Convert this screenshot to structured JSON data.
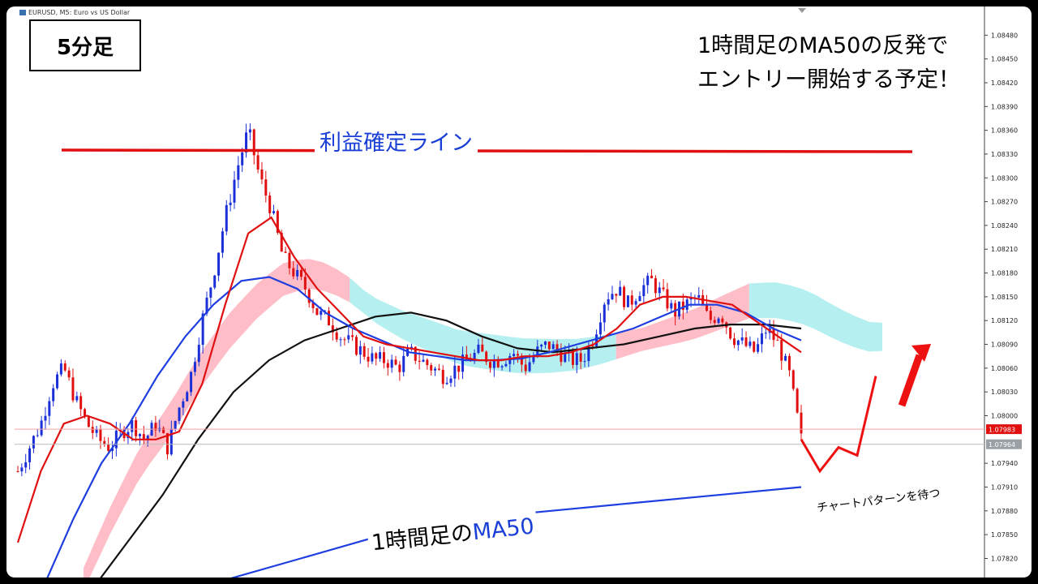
{
  "window": {
    "title": "EURUSD, M5:  Euro vs US Dollar"
  },
  "annotations": {
    "timeframe": "5分足",
    "plan_line1": "1時間足のMA50の反発で",
    "plan_line2": "エントリー開始する予定！",
    "take_profit": "利益確定ライン",
    "ma_prefix": "1時間足の",
    "ma_suffix": "MA50",
    "wait_pattern": "チャートパターンを待つ"
  },
  "colors": {
    "bull": "#1a2fd8",
    "bear": "#e01010",
    "ema_fast": "#e01010",
    "ma_blue": "#1e3ee0",
    "ma_black": "#111111",
    "kumo_bull": "#ffb3bd",
    "kumo_bear": "#a8ecec",
    "take_profit": "#e01010",
    "price_tag": "#e01010",
    "bid_tag": "#9aa0a6",
    "arrow": "#ee1111"
  },
  "chart_data": {
    "type": "candlestick",
    "symbol": "EURUSD",
    "timeframe": "M5",
    "ylim": [
      1.078,
      1.0851
    ],
    "y_ticks": [
      "1.08480",
      "1.08450",
      "1.08420",
      "1.08390",
      "1.08360",
      "1.08330",
      "1.08300",
      "1.08270",
      "1.08240",
      "1.08210",
      "1.08180",
      "1.08150",
      "1.08120",
      "1.08090",
      "1.08060",
      "1.08030",
      "1.08000",
      "1.07940",
      "1.07910",
      "1.07880",
      "1.07850",
      "1.07820"
    ],
    "current_price_label": "1.07983",
    "bid_label": "1.07964",
    "current_price": 1.07983,
    "bid_price": 1.07964,
    "take_profit_level": 1.08335,
    "price_path": [
      1.0793,
      1.0796,
      1.0799,
      1.0804,
      1.0806,
      1.0802,
      1.0799,
      1.0797,
      1.0796,
      1.0798,
      1.0799,
      1.0797,
      1.0799,
      1.0796,
      1.0801,
      1.0805,
      1.0812,
      1.0818,
      1.0825,
      1.0831,
      1.0836,
      1.083,
      1.0826,
      1.082,
      1.0818,
      1.0816,
      1.0813,
      1.0812,
      1.081,
      1.0809,
      1.0808,
      1.0807,
      1.0807,
      1.0806,
      1.0808,
      1.0807,
      1.0806,
      1.0805,
      1.0806,
      1.0807,
      1.0808,
      1.0807,
      1.0807,
      1.0808,
      1.0806,
      1.0808,
      1.0809,
      1.0808,
      1.0807,
      1.0807,
      1.081,
      1.0815,
      1.0816,
      1.0814,
      1.0816,
      1.0817,
      1.0815,
      1.0813,
      1.0814,
      1.0815,
      1.0812,
      1.0813,
      1.081,
      1.0809,
      1.0808,
      1.0811,
      1.0809,
      1.0805,
      1.0797
    ],
    "ema_fast": [
      1.0784,
      1.0793,
      1.0799,
      1.08,
      1.0799,
      1.0797,
      1.0797,
      1.0798,
      1.0804,
      1.0814,
      1.0823,
      1.0825,
      1.082,
      1.0816,
      1.0813,
      1.081,
      1.0809,
      1.08085,
      1.0808,
      1.08075,
      1.0807,
      1.0807,
      1.08075,
      1.08075,
      1.0808,
      1.0809,
      1.0811,
      1.0814,
      1.0815,
      1.0815,
      1.08145,
      1.0814,
      1.0812,
      1.081,
      1.0808
    ],
    "ma_blue": [
      1.0779,
      1.0787,
      1.0794,
      1.0799,
      1.0805,
      1.081,
      1.0814,
      1.0817,
      1.08175,
      1.0816,
      1.0813,
      1.0811,
      1.08095,
      1.0808,
      1.08075,
      1.0807,
      1.0807,
      1.08072,
      1.0808,
      1.0809,
      1.081,
      1.0811,
      1.08125,
      1.0814,
      1.0814,
      1.0813,
      1.0811,
      1.08095
    ],
    "ma_black": [
      1.0778,
      1.0784,
      1.079,
      1.0797,
      1.0803,
      1.0807,
      1.08095,
      1.0811,
      1.08125,
      1.0813,
      1.0812,
      1.081,
      1.08085,
      1.0808,
      1.08085,
      1.0809,
      1.081,
      1.0811,
      1.08115,
      1.08115,
      1.0811
    ],
    "ma50_h1": [
      1.0779,
      1.0782,
      1.0785,
      1.0787,
      1.0788,
      1.0789,
      1.079,
      1.0791
    ],
    "projection": [
      1.0797,
      1.0793,
      1.0796,
      1.0795,
      1.0805
    ]
  }
}
